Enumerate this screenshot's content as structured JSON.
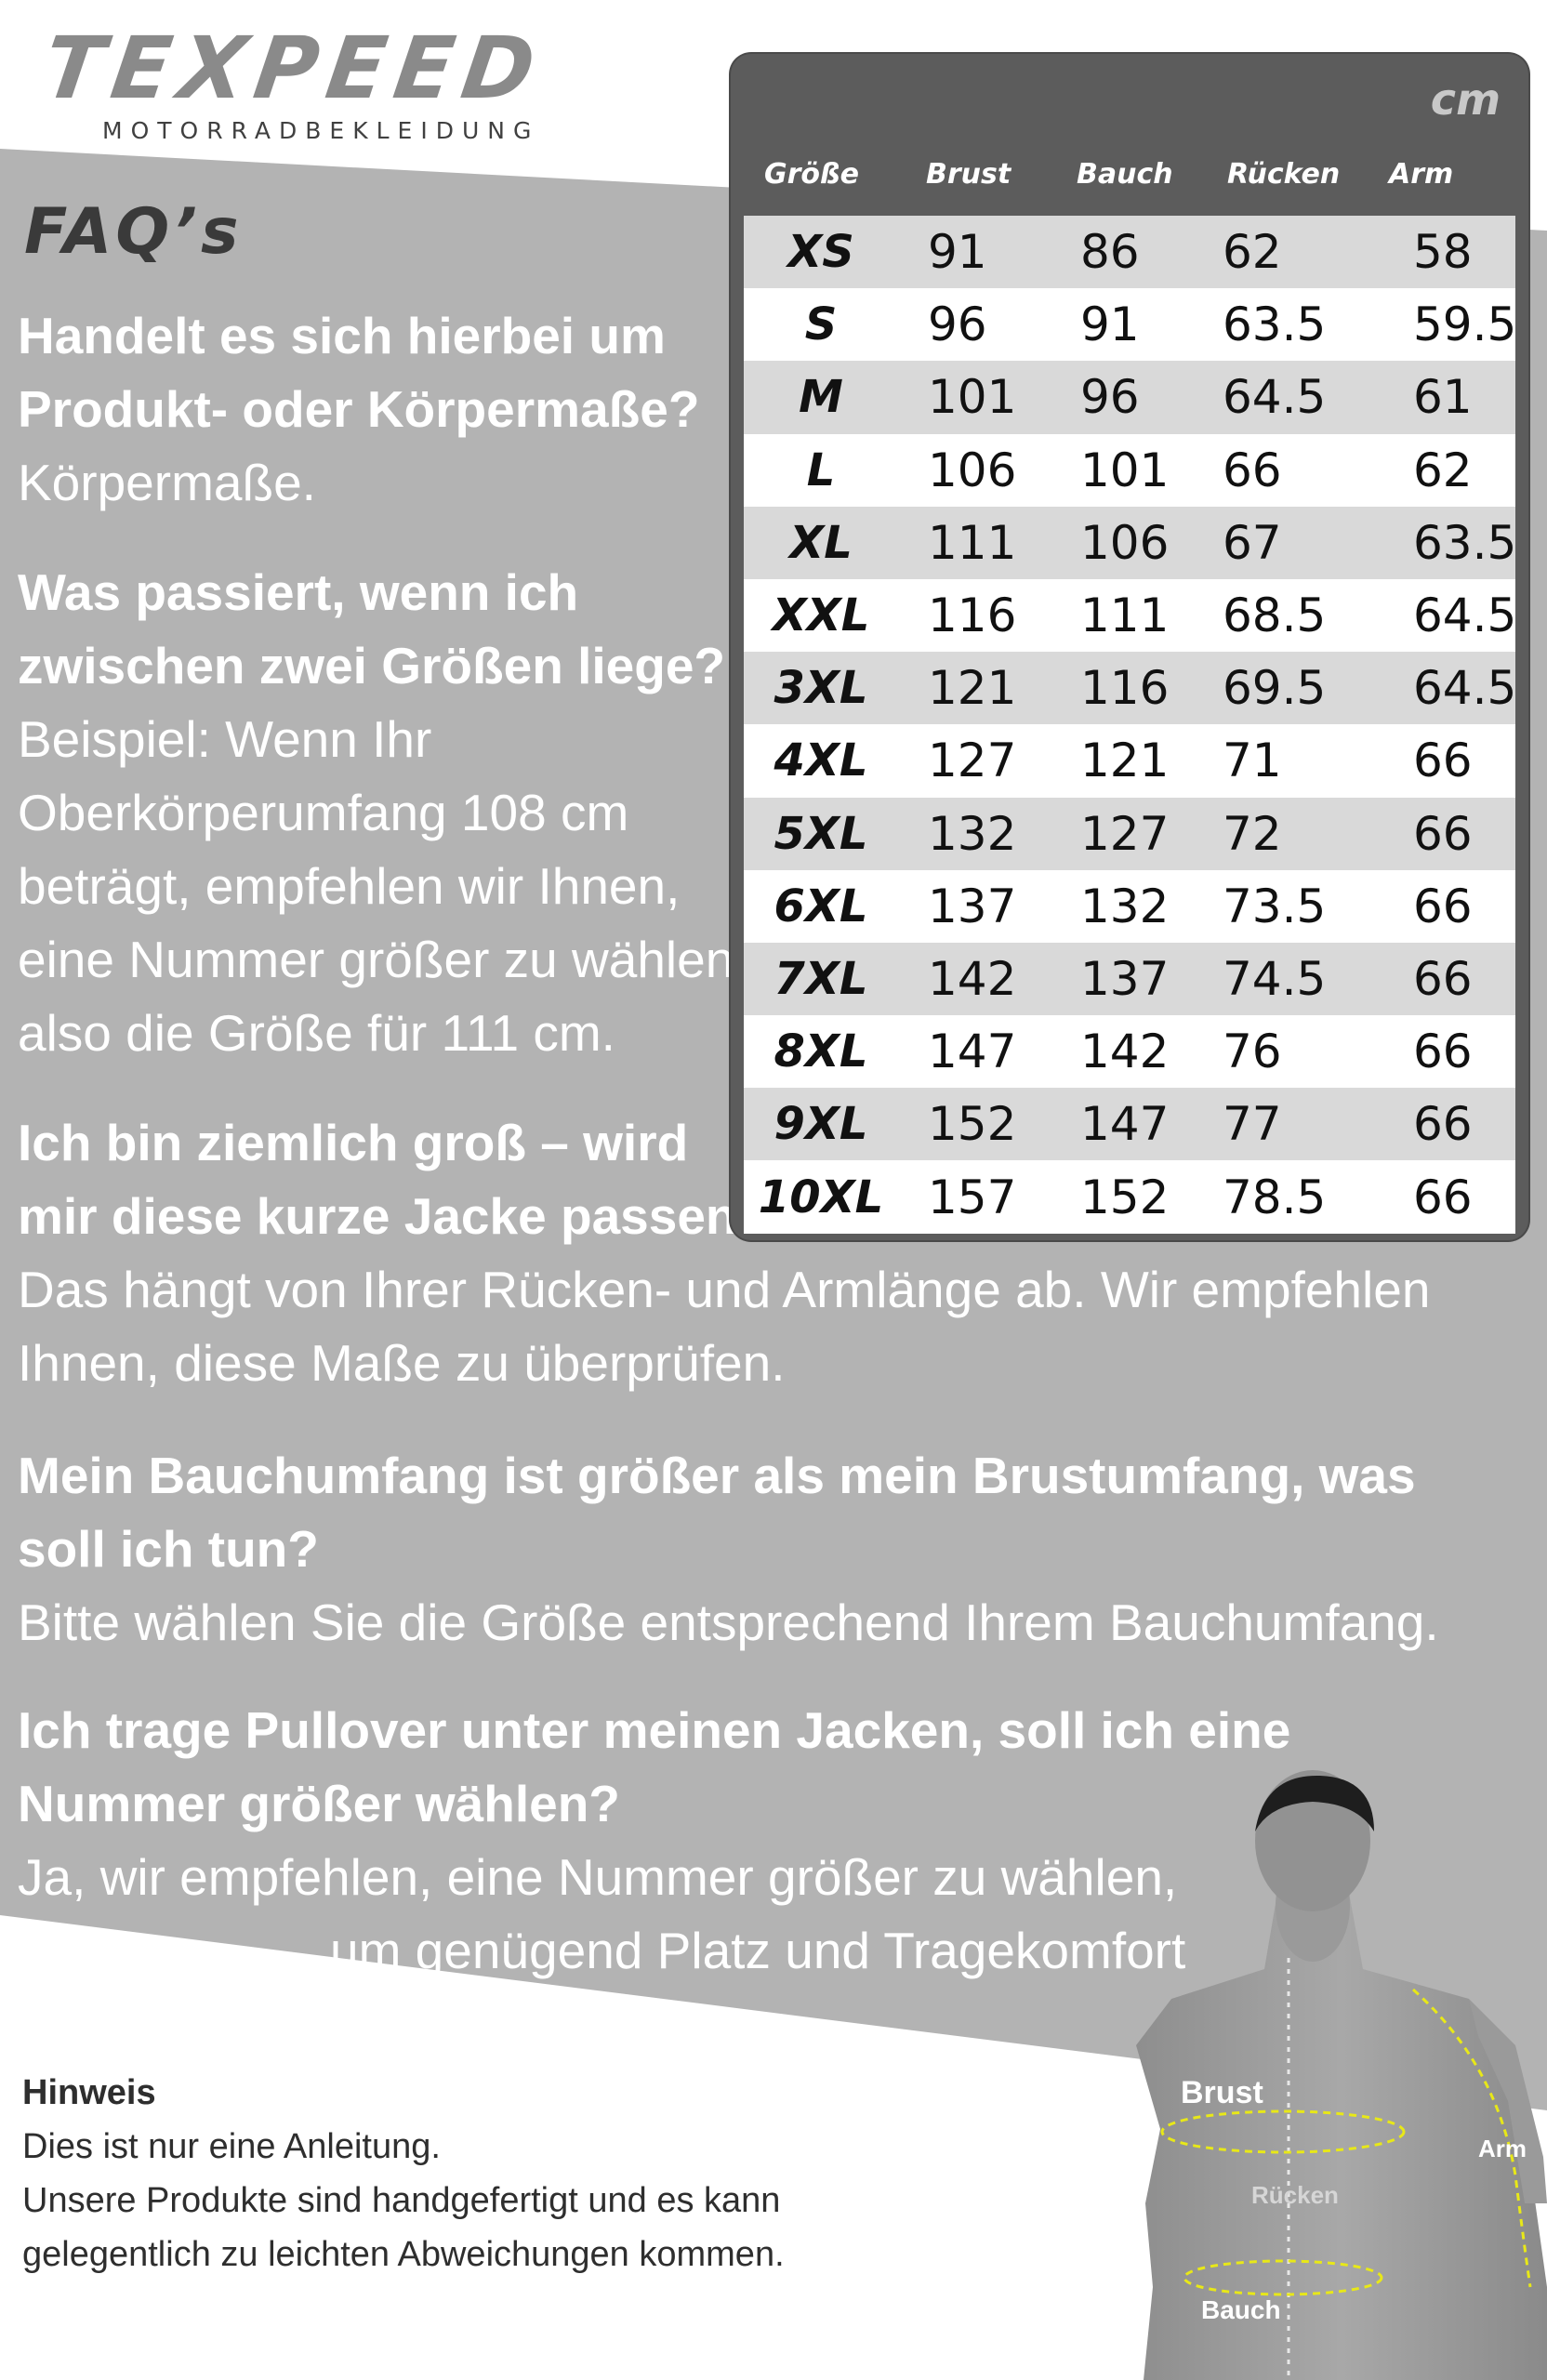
{
  "brand": {
    "name": "TEXPEED",
    "subtitle": "MOTORRADBEKLEIDUNG"
  },
  "faq_heading": "FAQ’s",
  "faqs": [
    {
      "question_lines": [
        "Handelt es sich hierbei um",
        "Produkt- oder Körpermaße?"
      ],
      "answer_lines": [
        "Körpermaße."
      ]
    },
    {
      "question_lines": [
        "Was passiert, wenn ich",
        "zwischen zwei Größen liege?"
      ],
      "answer_lines": [
        "Beispiel: Wenn Ihr",
        "Oberkörperumfang 108 cm",
        "beträgt, empfehlen wir Ihnen,",
        "eine Nummer größer zu wählen,",
        "also die Größe für 111 cm."
      ]
    },
    {
      "question_lines": [
        "Ich bin ziemlich groß – wird",
        "mir diese kurze Jacke passen?"
      ],
      "answer_lines": [
        "Das hängt von Ihrer Rücken- und Armlänge ab. Wir empfehlen",
        "Ihnen, diese Maße zu überprüfen."
      ]
    },
    {
      "question_lines": [
        "Mein Bauchumfang ist größer als mein Brustumfang, was",
        "soll ich tun?"
      ],
      "answer_lines": [
        "Bitte wählen Sie die Größe entsprechend Ihrem Bauchumfang."
      ]
    },
    {
      "question_lines": [
        "Ich trage Pullover unter meinen Jacken, soll ich eine",
        "Nummer größer wählen?"
      ],
      "answer_lines": [
        "Ja, wir empfehlen, eine Nummer größer zu wählen,",
        "um genügend Platz und Tragekomfort"
      ]
    }
  ],
  "size_table": {
    "unit": "cm",
    "headers": [
      "Größe",
      "Brust",
      "Bauch",
      "Rücken",
      "Arm"
    ],
    "rows": [
      [
        "XS",
        "91",
        "86",
        "62",
        "58"
      ],
      [
        "S",
        "96",
        "91",
        "63.5",
        "59.5"
      ],
      [
        "M",
        "101",
        "96",
        "64.5",
        "61"
      ],
      [
        "L",
        "106",
        "101",
        "66",
        "62"
      ],
      [
        "XL",
        "111",
        "106",
        "67",
        "63.5"
      ],
      [
        "XXL",
        "116",
        "111",
        "68.5",
        "64.5"
      ],
      [
        "3XL",
        "121",
        "116",
        "69.5",
        "64.5"
      ],
      [
        "4XL",
        "127",
        "121",
        "71",
        "66"
      ],
      [
        "5XL",
        "132",
        "127",
        "72",
        "66"
      ],
      [
        "6XL",
        "137",
        "132",
        "73.5",
        "66"
      ],
      [
        "7XL",
        "142",
        "137",
        "74.5",
        "66"
      ],
      [
        "8XL",
        "147",
        "142",
        "76",
        "66"
      ],
      [
        "9XL",
        "152",
        "147",
        "77",
        "66"
      ],
      [
        "10XL",
        "157",
        "152",
        "78.5",
        "66"
      ]
    ]
  },
  "note": {
    "title": "Hinweis",
    "lines": [
      "Dies ist nur eine Anleitung.",
      "Unsere Produkte sind handgefertigt und es kann",
      "gelegentlich zu leichten Abweichungen kommen."
    ]
  },
  "figure_labels": {
    "chest": "Brust",
    "arm": "Arm",
    "back": "Rücken",
    "belly": "Bauch"
  },
  "colors": {
    "band": "#b3b3b3",
    "table_frame": "#5c5c5c",
    "row_light": "#d9d9d9",
    "row_white": "#ffffff"
  }
}
